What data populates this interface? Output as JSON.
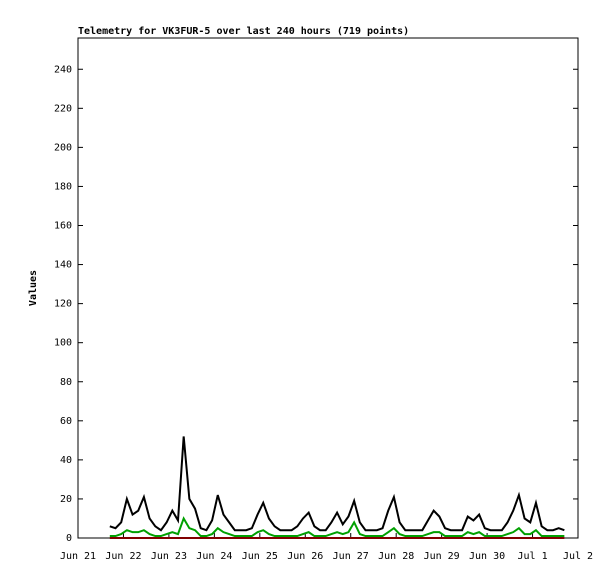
{
  "chart_data": {
    "type": "line",
    "title": "Telemetry for VK3FUR-5 over last 240 hours (719 points)",
    "y_label": "Values",
    "xlim": [
      0,
      11
    ],
    "xticks": [
      {
        "value": 0,
        "label": "Jun 21"
      },
      {
        "value": 1,
        "label": "Jun 22"
      },
      {
        "value": 2,
        "label": "Jun 23"
      },
      {
        "value": 3,
        "label": "Jun 24"
      },
      {
        "value": 4,
        "label": "Jun 25"
      },
      {
        "value": 5,
        "label": "Jun 26"
      },
      {
        "value": 6,
        "label": "Jun 27"
      },
      {
        "value": 7,
        "label": "Jun 28"
      },
      {
        "value": 8,
        "label": "Jun 29"
      },
      {
        "value": 9,
        "label": "Jun 30"
      },
      {
        "value": 10,
        "label": "Jul 1"
      },
      {
        "value": 11,
        "label": "Jul 2"
      }
    ],
    "ylim": [
      0,
      256
    ],
    "yticks": [
      0,
      20,
      40,
      60,
      80,
      100,
      120,
      140,
      160,
      180,
      200,
      220,
      240
    ],
    "grid": false,
    "x": [
      0.7,
      0.825,
      0.95,
      1.075,
      1.2,
      1.325,
      1.45,
      1.575,
      1.7,
      1.825,
      1.95,
      2.075,
      2.2,
      2.325,
      2.45,
      2.575,
      2.7,
      2.825,
      2.95,
      3.075,
      3.2,
      3.325,
      3.45,
      3.575,
      3.7,
      3.825,
      3.95,
      4.075,
      4.2,
      4.325,
      4.45,
      4.575,
      4.7,
      4.825,
      4.95,
      5.075,
      5.2,
      5.325,
      5.45,
      5.575,
      5.7,
      5.825,
      5.95,
      6.075,
      6.2,
      6.325,
      6.45,
      6.575,
      6.7,
      6.825,
      6.95,
      7.075,
      7.2,
      7.325,
      7.45,
      7.575,
      7.7,
      7.825,
      7.95,
      8.075,
      8.2,
      8.325,
      8.45,
      8.575,
      8.7,
      8.825,
      8.95,
      9.075,
      9.2,
      9.325,
      9.45,
      9.575,
      9.7,
      9.825,
      9.95,
      10.075,
      10.2,
      10.325,
      10.45,
      10.575,
      10.7
    ],
    "series": [
      {
        "color": "#000000",
        "values": [
          6,
          5,
          8,
          20,
          12,
          14,
          21,
          10,
          6,
          4,
          8,
          14,
          9,
          52,
          20,
          15,
          5,
          4,
          9,
          22,
          12,
          8,
          4,
          4,
          4,
          5,
          12,
          18,
          10,
          6,
          4,
          4,
          4,
          6,
          10,
          13,
          6,
          4,
          4,
          8,
          13,
          7,
          11,
          19,
          8,
          4,
          4,
          4,
          5,
          14,
          21,
          8,
          4,
          4,
          4,
          4,
          9,
          14,
          11,
          5,
          4,
          4,
          4,
          11,
          9,
          12,
          5,
          4,
          4,
          4,
          8,
          14,
          22,
          10,
          8,
          18,
          6,
          4,
          4,
          5,
          4
        ]
      },
      {
        "color": "#00a000",
        "values": [
          1,
          1,
          2,
          4,
          3,
          3,
          4,
          2,
          1,
          1,
          2,
          3,
          2,
          10,
          5,
          4,
          1,
          1,
          2,
          5,
          3,
          2,
          1,
          1,
          1,
          1,
          3,
          4,
          2,
          1,
          1,
          1,
          1,
          1,
          2,
          3,
          1,
          1,
          1,
          2,
          3,
          2,
          3,
          8,
          2,
          1,
          1,
          1,
          1,
          3,
          5,
          2,
          1,
          1,
          1,
          1,
          2,
          3,
          3,
          1,
          1,
          1,
          1,
          3,
          2,
          3,
          1,
          1,
          1,
          1,
          2,
          3,
          5,
          2,
          2,
          4,
          1,
          1,
          1,
          1,
          1
        ]
      },
      {
        "color": "#800000",
        "values": [
          0,
          0,
          0,
          0,
          0,
          0,
          0,
          0,
          0,
          0,
          0,
          0,
          0,
          0,
          0,
          0,
          0,
          0,
          0,
          0,
          0,
          0,
          0,
          0,
          0,
          0,
          0,
          0,
          0,
          0,
          0,
          0,
          0,
          0,
          0,
          0,
          0,
          0,
          0,
          0,
          0,
          0,
          0,
          0,
          0,
          0,
          0,
          0,
          0,
          0,
          0,
          0,
          0,
          0,
          0,
          0,
          0,
          0,
          0,
          0,
          0,
          0,
          0,
          0,
          0,
          0,
          0,
          0,
          0,
          0,
          0,
          0,
          0,
          0,
          0,
          0,
          0,
          0,
          0,
          0,
          0
        ]
      }
    ]
  }
}
